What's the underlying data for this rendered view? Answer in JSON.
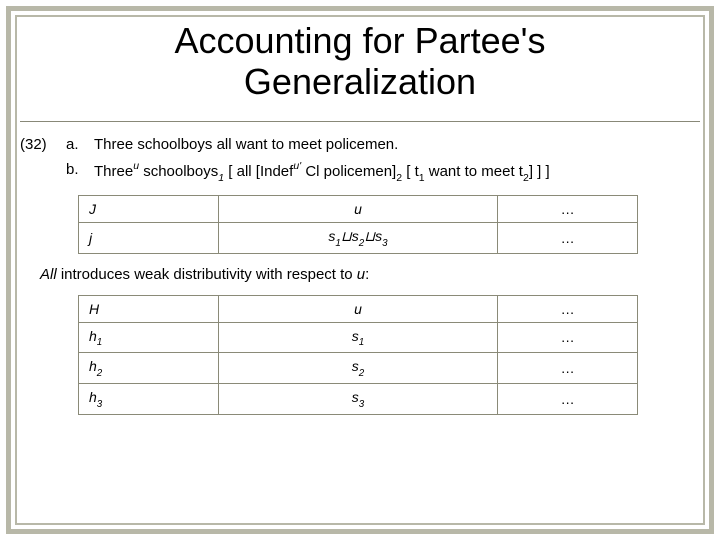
{
  "title_line1": "Accounting for Partee's",
  "title_line2": "Generalization",
  "example": {
    "number": "(32)",
    "a": {
      "letter": "a.",
      "text": "Three schoolboys all want to meet policemen."
    },
    "b": {
      "letter": "b.",
      "prefix": "Three",
      "sup1": "u",
      "mid1": " schoolboys",
      "sub1": "1",
      "mid2": " [ all  [Indef",
      "sup2": "u'",
      "mid3": " Cl policemen]",
      "sub2": "2",
      "mid4": " [ t",
      "sub3": "1",
      "mid5": " want to meet t",
      "sub4": "2",
      "suffix": "] ] ]"
    }
  },
  "table1": {
    "row1": {
      "c1": "J",
      "c2": "u",
      "c3": "…"
    },
    "row2": {
      "c1": "j",
      "c2_s1": "s",
      "c2_s1sub": "1",
      "c2_sq1": "⊔",
      "c2_s2": "s",
      "c2_s2sub": "2",
      "c2_sq2": "⊔",
      "c2_s3": "s",
      "c2_s3sub": "3",
      "c3": "…"
    }
  },
  "intro": {
    "pre": "All",
    "rest": " introduces weak distributivity with respect to ",
    "var": "u",
    "tail": ":"
  },
  "table2": {
    "row1": {
      "c1": "H",
      "c2": "u",
      "c3": "…"
    },
    "row2": {
      "c1a": "h",
      "c1b": "1",
      "c2a": "s",
      "c2b": "1",
      "c3": "…"
    },
    "row3": {
      "c1a": "h",
      "c1b": "2",
      "c2a": "s",
      "c2b": "2",
      "c3": "…"
    },
    "row4": {
      "c1a": "h",
      "c1b": "3",
      "c2a": "s",
      "c2b": "3",
      "c3": "…"
    }
  },
  "colors": {
    "frame": "#b8b8a8",
    "table_border": "#8a8a78",
    "text": "#000000",
    "background": "#ffffff"
  }
}
